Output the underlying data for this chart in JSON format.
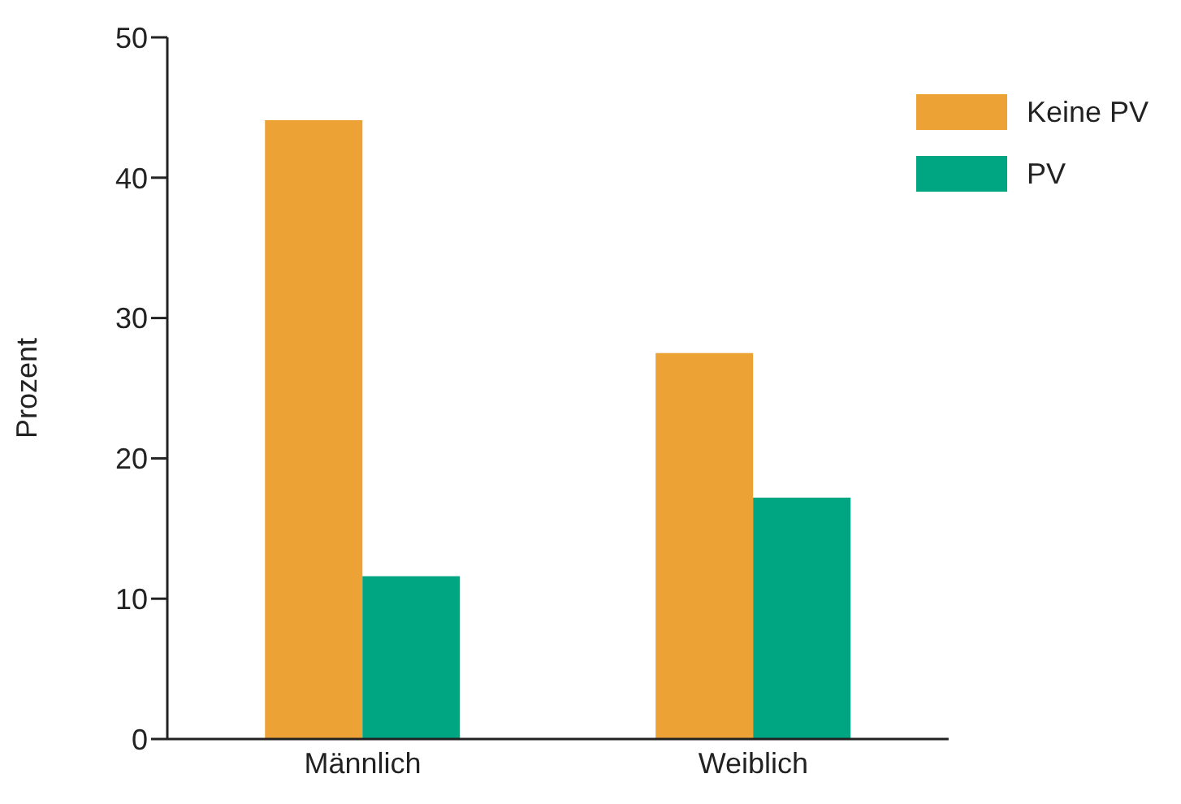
{
  "chart_data": {
    "type": "bar",
    "ylabel": "Prozent",
    "categories": [
      "Männlich",
      "Weiblich"
    ],
    "series": [
      {
        "name": "Keine PV",
        "color": "#eda236",
        "values": [
          44.1,
          27.5
        ]
      },
      {
        "name": "PV",
        "color": "#00a681",
        "values": [
          11.6,
          17.2
        ]
      }
    ],
    "ylim": [
      0,
      50
    ],
    "yticks": [
      0,
      10,
      20,
      30,
      40,
      50
    ],
    "grid": false,
    "legend": "top right"
  }
}
